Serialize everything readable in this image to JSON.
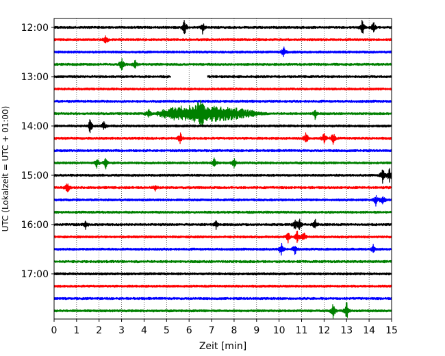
{
  "chart_data": {
    "type": "line",
    "title": "",
    "xlabel": "Zeit  [min]",
    "ylabel": "UTC (Lokalzeit = UTC + 01:00)",
    "xlim": [
      0,
      15
    ],
    "xticks": [
      0,
      1,
      2,
      3,
      4,
      5,
      6,
      7,
      8,
      9,
      10,
      11,
      12,
      13,
      14,
      15
    ],
    "x_grid": "dotted vertical lines at each minute",
    "yticks": [
      "12:00",
      "13:00",
      "14:00",
      "15:00",
      "16:00",
      "17:00"
    ],
    "trace_colors": [
      "#000000",
      "#ff0000",
      "#0000ff",
      "#008000"
    ],
    "traces": [
      {
        "start": "12:00",
        "color": "#000000",
        "events": [
          [
            5.8,
            14
          ],
          [
            6.6,
            9
          ],
          [
            13.7,
            13
          ],
          [
            14.2,
            9
          ]
        ]
      },
      {
        "start": "12:15",
        "color": "#ff0000",
        "events": [
          [
            2.3,
            8
          ]
        ]
      },
      {
        "start": "12:30",
        "color": "#0000ff",
        "events": [
          [
            10.2,
            8
          ]
        ]
      },
      {
        "start": "12:45",
        "color": "#008000",
        "events": [
          [
            3.0,
            12
          ],
          [
            3.6,
            7
          ]
        ]
      },
      {
        "start": "13:00",
        "color": "#000000",
        "gaps": [
          [
            5.2,
            6.8
          ]
        ],
        "events": []
      },
      {
        "start": "13:15",
        "color": "#ff0000",
        "events": []
      },
      {
        "start": "13:30",
        "color": "#0000ff",
        "events": []
      },
      {
        "start": "13:45",
        "color": "#008000",
        "events": [
          [
            4.2,
            10
          ],
          [
            6.5,
            24
          ],
          [
            11.6,
            9
          ]
        ],
        "earthquake": [
          4.5,
          9.5
        ]
      },
      {
        "start": "14:00",
        "color": "#000000",
        "events": [
          [
            1.6,
            12
          ],
          [
            2.2,
            8
          ]
        ]
      },
      {
        "start": "14:15",
        "color": "#ff0000",
        "events": [
          [
            5.6,
            9
          ],
          [
            11.2,
            10
          ],
          [
            12.0,
            9
          ],
          [
            12.4,
            10
          ]
        ]
      },
      {
        "start": "14:30",
        "color": "#0000ff",
        "events": []
      },
      {
        "start": "14:45",
        "color": "#008000",
        "events": [
          [
            1.9,
            7
          ],
          [
            2.3,
            9
          ],
          [
            7.1,
            9
          ],
          [
            8.0,
            7
          ]
        ]
      },
      {
        "start": "15:00",
        "color": "#000000",
        "events": [
          [
            14.6,
            11
          ],
          [
            14.9,
            12
          ]
        ]
      },
      {
        "start": "15:15",
        "color": "#ff0000",
        "events": [
          [
            0.6,
            11
          ],
          [
            4.5,
            5
          ]
        ]
      },
      {
        "start": "15:30",
        "color": "#0000ff",
        "events": [
          [
            14.3,
            9
          ],
          [
            14.6,
            10
          ]
        ]
      },
      {
        "start": "15:45",
        "color": "#008000",
        "events": []
      },
      {
        "start": "16:00",
        "color": "#000000",
        "events": [
          [
            1.4,
            6
          ],
          [
            7.2,
            6
          ],
          [
            10.7,
            8
          ],
          [
            10.9,
            10
          ],
          [
            11.6,
            9
          ]
        ]
      },
      {
        "start": "16:15",
        "color": "#ff0000",
        "events": [
          [
            10.4,
            10
          ],
          [
            10.8,
            10
          ],
          [
            11.1,
            8
          ]
        ]
      },
      {
        "start": "16:30",
        "color": "#0000ff",
        "events": [
          [
            10.1,
            11
          ],
          [
            10.7,
            9
          ],
          [
            14.2,
            8
          ]
        ]
      },
      {
        "start": "16:45",
        "color": "#008000",
        "events": []
      },
      {
        "start": "17:00",
        "color": "#000000",
        "events": []
      },
      {
        "start": "17:15",
        "color": "#ff0000",
        "events": []
      },
      {
        "start": "17:30",
        "color": "#0000ff",
        "events": []
      },
      {
        "start": "17:45",
        "color": "#008000",
        "events": [
          [
            12.4,
            14
          ],
          [
            13.0,
            15
          ]
        ]
      }
    ]
  }
}
